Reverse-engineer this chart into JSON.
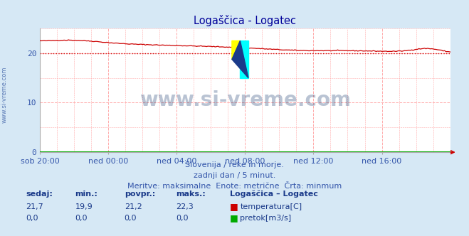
{
  "title": "Logaščica - Logatec",
  "title_color": "#000099",
  "bg_color": "#d6e8f5",
  "plot_bg_color": "#ffffff",
  "grid_color": "#ffaaaa",
  "xlabel_color": "#3355aa",
  "ylabel_ticks": [
    0,
    10,
    20
  ],
  "ylim": [
    0,
    25
  ],
  "xlim": [
    0,
    288
  ],
  "xtick_positions": [
    0,
    48,
    96,
    144,
    192,
    240
  ],
  "xtick_labels": [
    "sob 20:00",
    "ned 00:00",
    "ned 04:00",
    "ned 08:00",
    "ned 12:00",
    "ned 16:00"
  ],
  "watermark": "www.si-vreme.com",
  "watermark_color": "#1a3a6e",
  "temp_line_color": "#cc0000",
  "flow_line_color": "#00aa00",
  "min_line_value": 19.9,
  "min_line_color": "#cc0000",
  "subtitle1": "Slovenija / reke in morje.",
  "subtitle2": "zadnji dan / 5 minut.",
  "subtitle3": "Meritve: maksimalne  Enote: metrične  Črta: minmum",
  "subtitle_color": "#3355aa",
  "table_header": [
    "sedaj:",
    "min.:",
    "povpr.:",
    "maks.:",
    "Logaščica – Logatec"
  ],
  "table_row1": [
    "21,7",
    "19,9",
    "21,2",
    "22,3",
    "temperatura[C]"
  ],
  "table_row2": [
    "0,0",
    "0,0",
    "0,0",
    "0,0",
    "pretok[m3/s]"
  ],
  "table_color": "#1a3a8a",
  "side_label": "www.si-vreme.com",
  "side_label_color": "#4466aa",
  "temp_noise_seed": 42,
  "n_points": 289
}
